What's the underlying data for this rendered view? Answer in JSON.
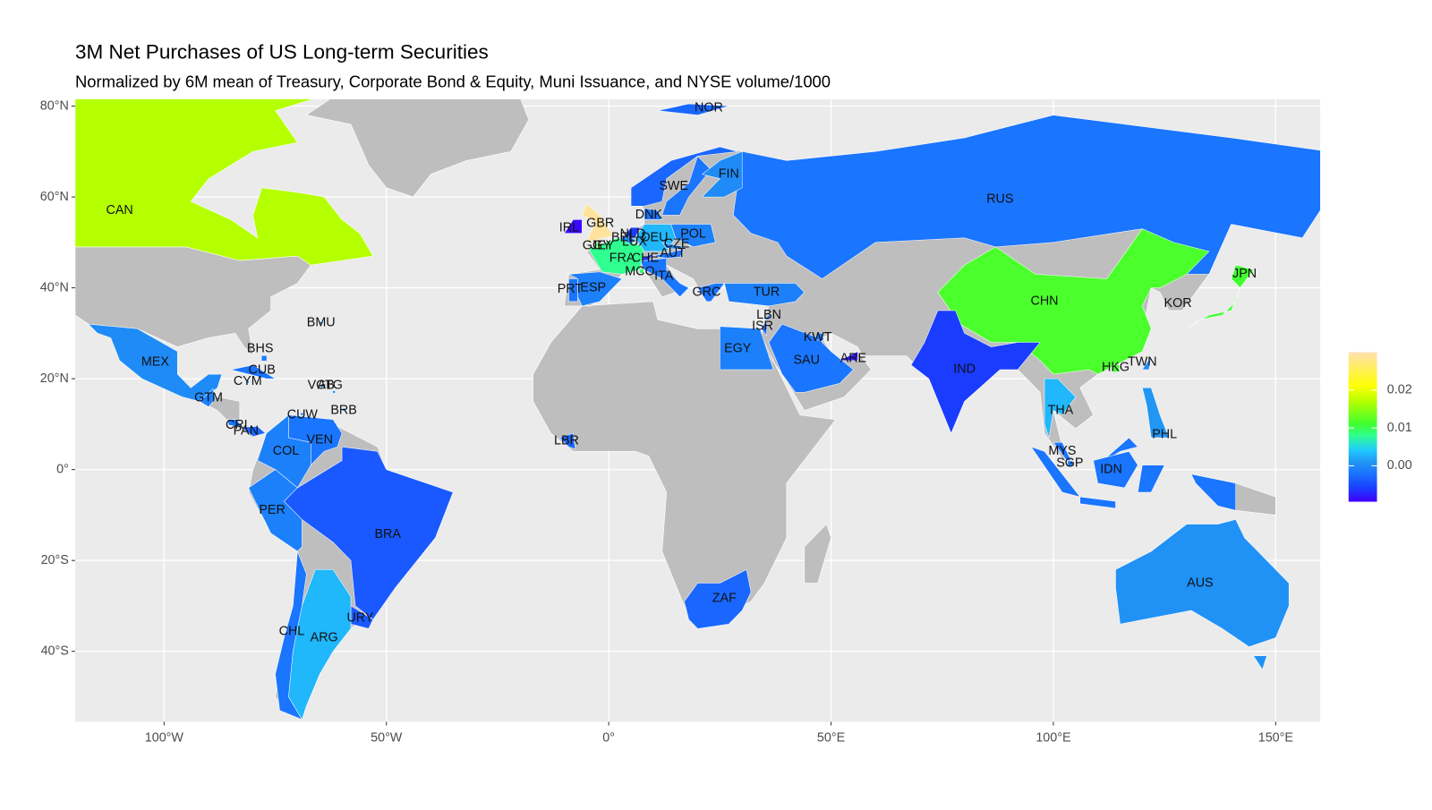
{
  "chart_data": {
    "type": "choropleth",
    "title": "3M Net Purchases of US Long-term Securities",
    "subtitle": "Normalized by 6M mean of Treasury, Corporate Bond & Equity, Muni Issuance, and NYSE volume/1000",
    "xlim": [
      -120,
      160
    ],
    "ylim": [
      -55.5,
      81.5
    ],
    "xticks": [
      {
        "value": -100,
        "label": "100°W"
      },
      {
        "value": -50,
        "label": "50°W"
      },
      {
        "value": 0,
        "label": "0°"
      },
      {
        "value": 50,
        "label": "50°E"
      },
      {
        "value": 100,
        "label": "100°E"
      },
      {
        "value": 150,
        "label": "150°E"
      }
    ],
    "yticks": [
      {
        "value": -40,
        "label": "40°S"
      },
      {
        "value": -20,
        "label": "20°S"
      },
      {
        "value": 0,
        "label": "0°"
      },
      {
        "value": 20,
        "label": "20°N"
      },
      {
        "value": 40,
        "label": "40°N"
      },
      {
        "value": 60,
        "label": "60°N"
      },
      {
        "value": 80,
        "label": "80°N"
      }
    ],
    "grid": true,
    "na_color": "#bebebe",
    "clim": [
      -0.0095,
      0.03
    ],
    "colorbar_ticks": [
      {
        "value": 0,
        "label": "0.00"
      },
      0.01,
      0.02
    ],
    "colorscale": [
      {
        "value": -0.0095,
        "color": "#4000ff"
      },
      {
        "value": -0.006,
        "color": "#1a3cff"
      },
      {
        "value": -0.002,
        "color": "#1a75ff"
      },
      {
        "value": 0.001,
        "color": "#2196f3"
      },
      {
        "value": 0.004,
        "color": "#20c8ff"
      },
      {
        "value": 0.008,
        "color": "#30ff90"
      },
      {
        "value": 0.011,
        "color": "#40ff30"
      },
      {
        "value": 0.017,
        "color": "#b4ff00"
      },
      {
        "value": 0.021,
        "color": "#ffff00"
      },
      {
        "value": 0.03,
        "color": "#ffe0b0"
      }
    ],
    "countries": [
      {
        "name": "CAN",
        "value": 0.017
      },
      {
        "name": "RUS",
        "value": -0.002
      },
      {
        "name": "CHN",
        "value": 0.0115
      },
      {
        "name": "IND",
        "value": -0.006
      },
      {
        "name": "JPN",
        "value": 0.011
      },
      {
        "name": "KOR",
        "value": null
      },
      {
        "name": "TWN",
        "value": 0.0
      },
      {
        "name": "HKG",
        "value": 0.011
      },
      {
        "name": "THA",
        "value": 0.003
      },
      {
        "name": "PHL",
        "value": 0.001
      },
      {
        "name": "MYS",
        "value": -0.002
      },
      {
        "name": "SGP",
        "value": -0.001
      },
      {
        "name": "IDN",
        "value": -0.002
      },
      {
        "name": "AUS",
        "value": 0.0005
      },
      {
        "name": "ZAF",
        "value": -0.003
      },
      {
        "name": "SAU",
        "value": -0.002
      },
      {
        "name": "EGY",
        "value": -0.001
      },
      {
        "name": "KWT",
        "value": -0.002
      },
      {
        "name": "ARE",
        "value": -0.008
      },
      {
        "name": "ISR",
        "value": -0.003
      },
      {
        "name": "LBN",
        "value": -0.002
      },
      {
        "name": "TUR",
        "value": -0.001
      },
      {
        "name": "GRC",
        "value": -0.002
      },
      {
        "name": "ITA",
        "value": -0.002
      },
      {
        "name": "MCO",
        "value": 0.009
      },
      {
        "name": "CHE",
        "value": -0.006
      },
      {
        "name": "FRA",
        "value": 0.008
      },
      {
        "name": "LUX",
        "value": 0.006
      },
      {
        "name": "GGY",
        "value": 0.012
      },
      {
        "name": "JEY",
        "value": 0.012
      },
      {
        "name": "BEL",
        "value": 0.0
      },
      {
        "name": "NLD",
        "value": -0.006
      },
      {
        "name": "DEU",
        "value": 0.003
      },
      {
        "name": "CZE",
        "value": 0.0
      },
      {
        "name": "AUT",
        "value": -0.002
      },
      {
        "name": "POL",
        "value": -0.001
      },
      {
        "name": "DNK",
        "value": -0.002
      },
      {
        "name": "GBR",
        "value": 0.029
      },
      {
        "name": "IRL",
        "value": -0.009
      },
      {
        "name": "ESP",
        "value": -0.001
      },
      {
        "name": "PRT",
        "value": -0.002
      },
      {
        "name": "SWE",
        "value": -0.002
      },
      {
        "name": "FIN",
        "value": 0.0
      },
      {
        "name": "NOR",
        "value": -0.003
      },
      {
        "name": "LBR",
        "value": -0.003
      },
      {
        "name": "MEX",
        "value": 0.0
      },
      {
        "name": "BMU",
        "value": 0.001
      },
      {
        "name": "BHS",
        "value": -0.001
      },
      {
        "name": "CUB",
        "value": -0.002
      },
      {
        "name": "CYM",
        "value": 0.001
      },
      {
        "name": "VGB",
        "value": 0.001
      },
      {
        "name": "ATG",
        "value": 0.001
      },
      {
        "name": "BRB",
        "value": 0.001
      },
      {
        "name": "GTM",
        "value": -0.001
      },
      {
        "name": "CUW",
        "value": 0.0
      },
      {
        "name": "CRI",
        "value": -0.002
      },
      {
        "name": "PAN",
        "value": -0.003
      },
      {
        "name": "COL",
        "value": -0.001
      },
      {
        "name": "VEN",
        "value": -0.002
      },
      {
        "name": "PER",
        "value": -0.001
      },
      {
        "name": "BRA",
        "value": -0.004
      },
      {
        "name": "URY",
        "value": -0.004
      },
      {
        "name": "CHL",
        "value": -0.002
      },
      {
        "name": "ARG",
        "value": 0.003
      }
    ]
  }
}
